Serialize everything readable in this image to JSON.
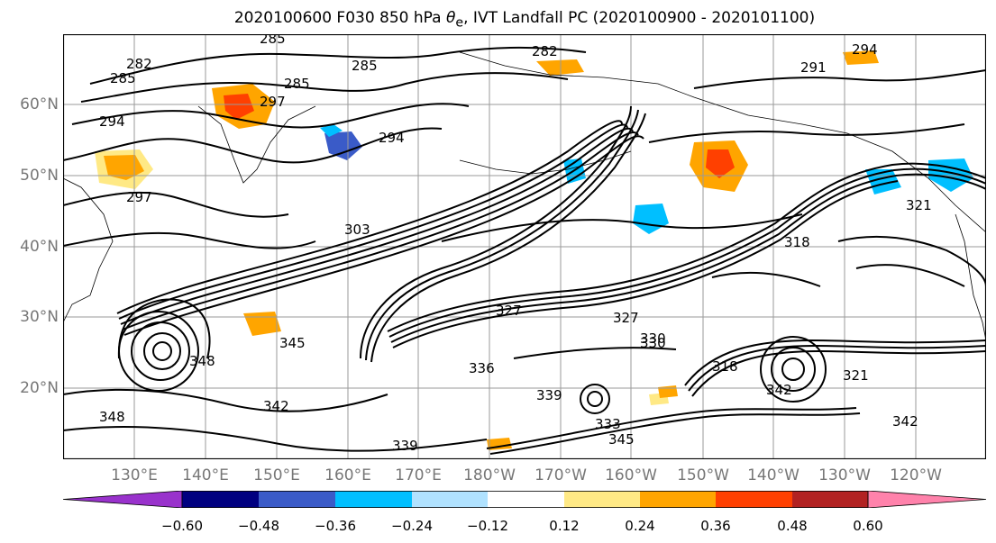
{
  "title_main": "2020100600 F030 850 hPa ",
  "title_symbol": "θ",
  "title_sub": "e",
  "title_rest": ", IVT Landfall PC (2020100900 - 2020101100)",
  "latitude_labels": [
    "60°N",
    "50°N",
    "40°N",
    "30°N",
    "20°N"
  ],
  "longitude_labels": [
    "130°E",
    "140°E",
    "150°E",
    "160°E",
    "170°E",
    "180°W",
    "170°W",
    "160°W",
    "150°W",
    "140°W",
    "130°W",
    "120°W"
  ],
  "contour_labels": [
    "282",
    "285",
    "285",
    "294",
    "297",
    "282",
    "285",
    "294",
    "297",
    "285",
    "291",
    "294",
    "303",
    "318",
    "321",
    "327",
    "330",
    "345",
    "348",
    "342",
    "339",
    "336",
    "333",
    "339",
    "345",
    "342",
    "348",
    "318",
    "342",
    "321",
    "327",
    "330"
  ],
  "colorbar": {
    "colors": [
      "#9932cc",
      "#000080",
      "#3a5bc8",
      "#00bfff",
      "#b0e2ff",
      "#ffffff",
      "#ffe985",
      "#ffa500",
      "#ff4000",
      "#b22222",
      "#ff82ab"
    ],
    "tick_labels": [
      "−0.60",
      "−0.48",
      "−0.36",
      "−0.24",
      "−0.12",
      "0.12",
      "0.24",
      "0.36",
      "0.48",
      "0.60"
    ]
  },
  "shading_colors": {
    "neg_light": "#00bfff",
    "neg_medium": "#3a5bc8",
    "pos_light": "#ffe985",
    "pos_medium": "#ffa500",
    "pos_strong": "#ff4000"
  }
}
